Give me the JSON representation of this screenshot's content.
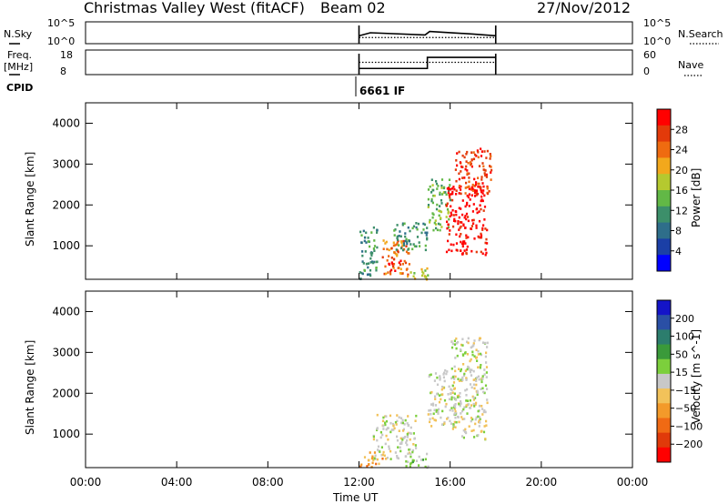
{
  "header": {
    "title": "Christmas Valley West (fitACF)",
    "beam": "Beam 02",
    "date": "27/Nov/2012"
  },
  "labels": {
    "nsky": "N.Sky",
    "nsearch": "N.Search",
    "freq_line1": "Freq.",
    "freq_line2": "[MHz]",
    "nave": "Nave",
    "cpid": "CPID",
    "cpid_value": "6661 IF",
    "xlabel": "Time UT"
  },
  "colors": {
    "power_scale": [
      "#0000ff",
      "#1b3fa6",
      "#2e6e8a",
      "#3c8f6a",
      "#62b846",
      "#b5c92f",
      "#f2a81c",
      "#ef6b10",
      "#e33a0a",
      "#ff0000"
    ],
    "velocity_scale": [
      "#1414c8",
      "#2a4fa5",
      "#2c7d6d",
      "#3a9a3a",
      "#7ccf3c",
      "#c8c8c8",
      "#f2c25a",
      "#f39a2a",
      "#f06a14",
      "#e03a0a",
      "#ff0000"
    ]
  },
  "chart_data": [
    {
      "type": "line",
      "title": "N.Sky / N.Search",
      "x_unit": "hours UT",
      "left_ticks": [
        "10^5",
        "10^0"
      ],
      "right_ticks": [
        "10^5",
        "10^0"
      ],
      "series": [
        {
          "name": "N.Sky",
          "style": "solid",
          "x": [
            12.0,
            12.5,
            14.9,
            15.1,
            17.0,
            18.0
          ],
          "y": [
            1.8,
            2.5,
            2.0,
            2.8,
            2.2,
            1.8
          ]
        },
        {
          "name": "N.Search",
          "style": "dotted",
          "x": [
            12.0,
            18.0
          ],
          "y": [
            1.4,
            1.4
          ]
        }
      ]
    },
    {
      "type": "line",
      "title": "Freq. / Nave",
      "left_ticks": [
        "18",
        "8"
      ],
      "right_ticks": [
        "60",
        "0"
      ],
      "series": [
        {
          "name": "Freq.",
          "style": "solid",
          "x": [
            12.0,
            15.0,
            15.0,
            18.0
          ],
          "y": [
            10.5,
            10.5,
            15.0,
            15.0
          ]
        },
        {
          "name": "Nave",
          "style": "dotted",
          "x": [
            12.0,
            18.0
          ],
          "y": [
            30,
            30
          ]
        }
      ]
    },
    {
      "type": "heatmap",
      "title": "Power",
      "xlabel": "Time UT",
      "ylabel": "Slant Range [km]",
      "xlim": [
        0,
        24
      ],
      "ylim": [
        180,
        4500
      ],
      "x_ticks": [
        "00:00",
        "04:00",
        "08:00",
        "12:00",
        "16:00",
        "20:00",
        "00:00"
      ],
      "y_ticks": [
        1000,
        2000,
        3000,
        4000
      ],
      "colorbar_label": "Power [dB]",
      "colorbar_ticks": [
        "28",
        "24",
        "20",
        "16",
        "12",
        "8",
        "4"
      ],
      "echo_regions": [
        {
          "t0": 12.0,
          "t1": 12.8,
          "r0": 200,
          "r1": 1500,
          "level": 3
        },
        {
          "t0": 13.0,
          "t1": 14.2,
          "r0": 300,
          "r1": 1200,
          "level": 7
        },
        {
          "t0": 13.2,
          "t1": 13.8,
          "r0": 400,
          "r1": 700,
          "level": 9
        },
        {
          "t0": 13.5,
          "t1": 15.0,
          "r0": 900,
          "r1": 1600,
          "level": 3
        },
        {
          "t0": 14.0,
          "t1": 15.0,
          "r0": 200,
          "r1": 500,
          "level": 5
        },
        {
          "t0": 15.0,
          "t1": 16.0,
          "r0": 1400,
          "r1": 2700,
          "level": 4
        },
        {
          "t0": 15.8,
          "t1": 17.6,
          "r0": 800,
          "r1": 2500,
          "level": 9
        },
        {
          "t0": 16.2,
          "t1": 17.8,
          "r0": 2300,
          "r1": 3400,
          "level": 8
        }
      ]
    },
    {
      "type": "heatmap",
      "title": "Velocity",
      "xlabel": "Time UT",
      "ylabel": "Slant Range [km]",
      "xlim": [
        0,
        24
      ],
      "ylim": [
        180,
        4500
      ],
      "x_ticks": [
        "00:00",
        "04:00",
        "08:00",
        "12:00",
        "16:00",
        "20:00",
        "00:00"
      ],
      "y_ticks": [
        1000,
        2000,
        3000,
        4000
      ],
      "colorbar_label": "Velocity [m s^-1]",
      "colorbar_ticks": [
        "200",
        "100",
        "50",
        "15",
        "−15",
        "−50",
        "−100",
        "−200"
      ],
      "echo_regions": [
        {
          "t0": 12.0,
          "t1": 13.0,
          "r0": 200,
          "r1": 600,
          "level": 7
        },
        {
          "t0": 12.6,
          "t1": 14.5,
          "r0": 400,
          "r1": 1500,
          "level": 5
        },
        {
          "t0": 14.0,
          "t1": 15.0,
          "r0": 200,
          "r1": 600,
          "level": 4
        },
        {
          "t0": 15.0,
          "t1": 16.2,
          "r0": 1200,
          "r1": 2600,
          "level": 5
        },
        {
          "t0": 16.0,
          "t1": 17.6,
          "r0": 900,
          "r1": 2400,
          "level": 5
        },
        {
          "t0": 16.0,
          "t1": 17.6,
          "r0": 2300,
          "r1": 3400,
          "level": 5
        }
      ]
    }
  ]
}
